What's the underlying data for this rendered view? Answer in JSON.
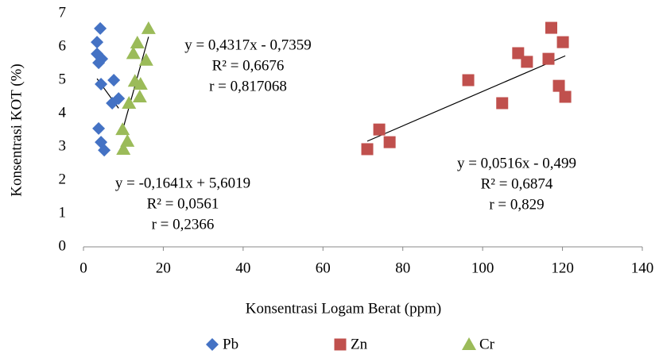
{
  "chart_data": {
    "type": "scatter",
    "xlabel": "Konsentrasi Logam Berat (ppm)",
    "ylabel": "Konsentrasi KOT (%)",
    "xlim": [
      0,
      140
    ],
    "xticks": [
      0,
      20,
      40,
      60,
      80,
      100,
      120,
      140
    ],
    "ylim": [
      0,
      7
    ],
    "yticks": [
      0,
      1,
      2,
      3,
      4,
      5,
      6,
      7
    ],
    "grid": false,
    "legend": "bottom",
    "series": [
      {
        "name": "Pb",
        "color": "#4472c4",
        "marker": "diamond",
        "x": [
          4.2,
          3.4,
          3.4,
          4.6,
          3.8,
          4.4,
          7.6,
          7.2,
          8.8,
          3.8,
          4.4,
          5.2
        ],
        "values": [
          6.55,
          6.14,
          5.79,
          5.64,
          5.52,
          4.88,
          5.0,
          4.31,
          4.45,
          3.55,
          3.14,
          2.9
        ],
        "trendline": {
          "slope": -0.1641,
          "intercept": 5.6019,
          "label": [
            "y = -0,1641x + 5,6019",
            "R² = 0,0561",
            "r = 0,2366"
          ]
        }
      },
      {
        "name": "Zn",
        "color": "#c0504d",
        "marker": "square",
        "x": [
          71.1,
          74.1,
          76.7,
          96.4,
          104.9,
          108.9,
          111.1,
          117.2,
          116.5,
          120.1,
          119.1,
          120.7
        ],
        "values": [
          2.93,
          3.52,
          3.14,
          5.0,
          4.31,
          5.81,
          5.55,
          6.57,
          5.64,
          6.14,
          4.83,
          4.5
        ],
        "trendline": {
          "slope": 0.0516,
          "intercept": -0.499,
          "label": [
            "y = 0,0516x - 0,499",
            "R² = 0,6874",
            "r = 0,829"
          ]
        }
      },
      {
        "name": "Cr",
        "color": "#9bbb59",
        "marker": "triangle",
        "x": [
          16.3,
          13.5,
          12.5,
          15.7,
          12.9,
          14.3,
          14.1,
          11.4,
          9.8,
          11.0,
          10.0
        ],
        "values": [
          6.55,
          6.12,
          5.8,
          5.6,
          4.97,
          4.88,
          4.5,
          4.31,
          3.52,
          3.17,
          2.93
        ],
        "trendline": {
          "slope": 0.4317,
          "intercept": -0.7359,
          "label": [
            "y = 0,4317x - 0,7359",
            "R² = 0,6676",
            "r =  0,817068"
          ]
        }
      }
    ]
  }
}
